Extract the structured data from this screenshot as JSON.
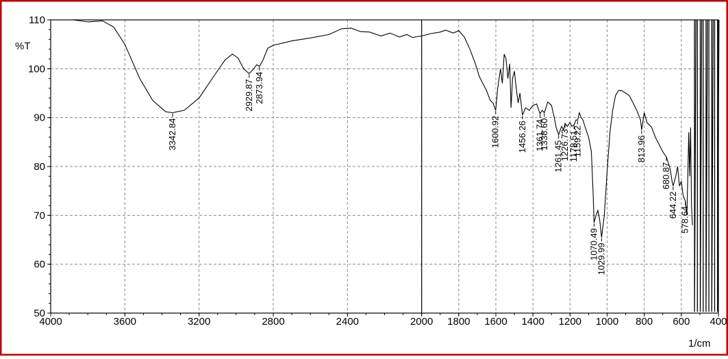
{
  "chart_data": {
    "type": "line",
    "title": "",
    "xlabel": "1/cm",
    "ylabel": "%T",
    "xlim": [
      4000,
      400
    ],
    "ylim": [
      50,
      110
    ],
    "x_axis_reversed": true,
    "grid": true,
    "x_ticks": [
      "4000",
      "3600",
      "3200",
      "2800",
      "2400",
      "2000",
      "1800",
      "1600",
      "1400",
      "1200",
      "1000",
      "800",
      "600",
      "400"
    ],
    "x_tick_values": [
      4000,
      3600,
      3200,
      2800,
      2400,
      2000,
      1800,
      1600,
      1400,
      1200,
      1000,
      800,
      600,
      400
    ],
    "y_ticks": [
      "110",
      "100",
      "90",
      "80",
      "70",
      "60",
      "50"
    ],
    "y_tick_values": [
      110,
      100,
      90,
      80,
      70,
      60,
      50
    ],
    "series": [
      {
        "color": "#000000",
        "points": [
          [
            3880,
            110
          ],
          [
            3800,
            109.6
          ],
          [
            3720,
            109.8
          ],
          [
            3660,
            108.5
          ],
          [
            3600,
            105
          ],
          [
            3520,
            98
          ],
          [
            3450,
            93.5
          ],
          [
            3380,
            91.2
          ],
          [
            3342.84,
            91
          ],
          [
            3280,
            91.5
          ],
          [
            3200,
            94
          ],
          [
            3120,
            98.5
          ],
          [
            3060,
            101.8
          ],
          [
            3020,
            103
          ],
          [
            2990,
            102.2
          ],
          [
            2960,
            100
          ],
          [
            2929.87,
            99
          ],
          [
            2905,
            100
          ],
          [
            2890,
            100.8
          ],
          [
            2873.94,
            100.5
          ],
          [
            2855,
            101.8
          ],
          [
            2830,
            104.2
          ],
          [
            2800,
            104.8
          ],
          [
            2700,
            105.7
          ],
          [
            2600,
            106.3
          ],
          [
            2500,
            107
          ],
          [
            2430,
            108.2
          ],
          [
            2380,
            108.3
          ],
          [
            2330,
            107.6
          ],
          [
            2280,
            107.5
          ],
          [
            2220,
            106.7
          ],
          [
            2170,
            107.3
          ],
          [
            2120,
            106.5
          ],
          [
            2080,
            107
          ],
          [
            2050,
            106.4
          ],
          [
            2000,
            106.7
          ],
          [
            1950,
            107.2
          ],
          [
            1900,
            107.5
          ],
          [
            1870,
            107.9
          ],
          [
            1830,
            107.3
          ],
          [
            1800,
            107.8
          ],
          [
            1770,
            106.5
          ],
          [
            1740,
            104
          ],
          [
            1710,
            101
          ],
          [
            1690,
            98.5
          ],
          [
            1670,
            97
          ],
          [
            1650,
            95.5
          ],
          [
            1630,
            93.5
          ],
          [
            1615,
            93
          ],
          [
            1600.92,
            91.5
          ],
          [
            1590,
            96
          ],
          [
            1575,
            100
          ],
          [
            1565,
            97
          ],
          [
            1555,
            103
          ],
          [
            1545,
            102
          ],
          [
            1535,
            98
          ],
          [
            1525,
            101
          ],
          [
            1518,
            92
          ],
          [
            1510,
            98
          ],
          [
            1500,
            99.5
          ],
          [
            1490,
            96
          ],
          [
            1480,
            93
          ],
          [
            1470,
            95
          ],
          [
            1456.26,
            90.5
          ],
          [
            1440,
            92
          ],
          [
            1420,
            91.5
          ],
          [
            1400,
            92.5
          ],
          [
            1380,
            92.8
          ],
          [
            1361.74,
            90.8
          ],
          [
            1350,
            91.5
          ],
          [
            1338.6,
            91
          ],
          [
            1320,
            93.2
          ],
          [
            1300,
            92.5
          ],
          [
            1285,
            90
          ],
          [
            1275,
            88
          ],
          [
            1261.45,
            86.5
          ],
          [
            1245,
            88.2
          ],
          [
            1235,
            87.5
          ],
          [
            1226.73,
            88.8
          ],
          [
            1215,
            88.2
          ],
          [
            1200,
            89
          ],
          [
            1190,
            88.2
          ],
          [
            1178.51,
            88.5
          ],
          [
            1168,
            89.5
          ],
          [
            1159.22,
            89.5
          ],
          [
            1150,
            91
          ],
          [
            1140,
            90
          ],
          [
            1130,
            89.5
          ],
          [
            1120,
            88.2
          ],
          [
            1100,
            86
          ],
          [
            1085,
            83
          ],
          [
            1075,
            74
          ],
          [
            1070.49,
            68.5
          ],
          [
            1060,
            70
          ],
          [
            1050,
            71
          ],
          [
            1040,
            69
          ],
          [
            1029.99,
            65.5
          ],
          [
            1015,
            70
          ],
          [
            1000,
            79
          ],
          [
            985,
            87
          ],
          [
            970,
            91.5
          ],
          [
            955,
            94.5
          ],
          [
            940,
            95.5
          ],
          [
            920,
            95.5
          ],
          [
            900,
            95
          ],
          [
            880,
            94.5
          ],
          [
            860,
            93
          ],
          [
            840,
            91.5
          ],
          [
            820,
            89.5
          ],
          [
            813.96,
            87.5
          ],
          [
            800,
            91
          ],
          [
            785,
            89
          ],
          [
            760,
            88
          ],
          [
            740,
            86
          ],
          [
            720,
            84.5
          ],
          [
            700,
            83
          ],
          [
            680.87,
            82
          ],
          [
            660,
            79.5
          ],
          [
            650,
            77
          ],
          [
            644.22,
            76
          ],
          [
            630,
            78
          ],
          [
            620,
            80
          ],
          [
            610,
            76
          ],
          [
            600,
            77
          ],
          [
            590,
            74
          ],
          [
            578.64,
            73
          ],
          [
            570,
            70
          ],
          [
            560,
            87
          ],
          [
            555,
            78
          ],
          [
            550,
            88
          ],
          [
            545,
            72
          ],
          [
            540,
            68
          ]
        ]
      }
    ],
    "noise_region": {
      "from": 540,
      "to": 400,
      "ymin": 50,
      "ymax": 110
    },
    "annotations": [
      {
        "label": "3342.84",
        "x": 3342.84,
        "y": 91
      },
      {
        "label": "2929.87",
        "x": 2929.87,
        "y": 99
      },
      {
        "label": "2873.94",
        "x": 2873.94,
        "y": 100.5
      },
      {
        "label": "1600.92",
        "x": 1600.92,
        "y": 91.5
      },
      {
        "label": "1456.26",
        "x": 1456.26,
        "y": 90.5
      },
      {
        "label": "1361.74",
        "x": 1361.74,
        "y": 90.8
      },
      {
        "label": "1338.60",
        "x": 1338.6,
        "y": 91
      },
      {
        "label": "1261.45",
        "x": 1261.45,
        "y": 86.5
      },
      {
        "label": "1226.73",
        "x": 1226.73,
        "y": 88.8
      },
      {
        "label": "1178.51",
        "x": 1178.51,
        "y": 88.5
      },
      {
        "label": "1159.22",
        "x": 1159.22,
        "y": 89.5
      },
      {
        "label": "1070.49",
        "x": 1070.49,
        "y": 68.5
      },
      {
        "label": "1029.99",
        "x": 1029.99,
        "y": 65.5
      },
      {
        "label": "813.96",
        "x": 813.96,
        "y": 87.5
      },
      {
        "label": "680.87",
        "x": 680.87,
        "y": 82
      },
      {
        "label": "644.22",
        "x": 644.22,
        "y": 76
      },
      {
        "label": "578.64",
        "x": 578.64,
        "y": 73
      }
    ],
    "marker_line_x": 2000,
    "colors": {
      "frame": "#c00000",
      "line": "#000000",
      "grid": "#8a8a8a",
      "background": "#ffffff"
    }
  }
}
